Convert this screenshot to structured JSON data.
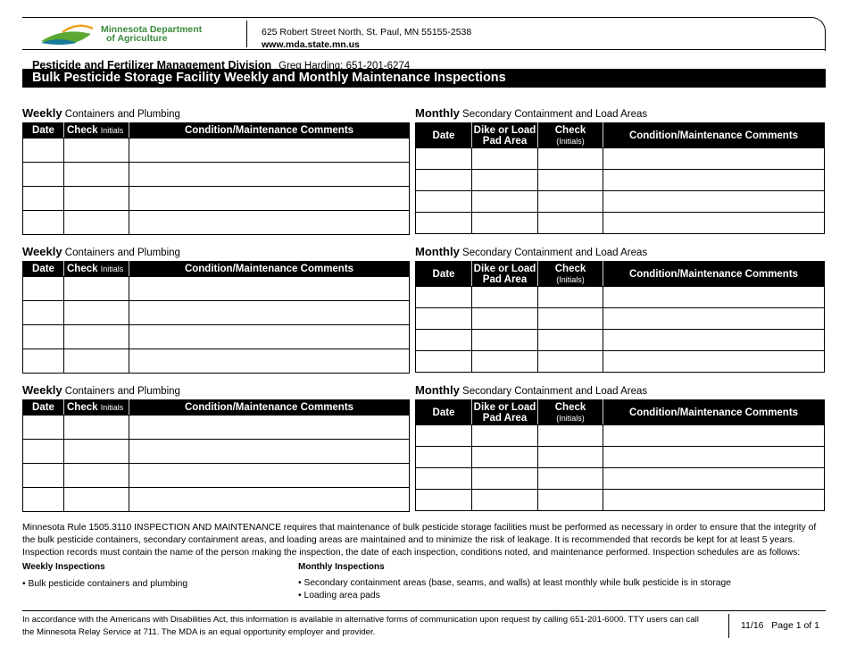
{
  "header": {
    "logo_text": "Minnesota Department of Agriculture",
    "logo_line1": "Minnesota Department",
    "logo_line2": "of Agriculture",
    "address": "625 Robert Street North, St. Paul, MN 55155-2538",
    "website": "www.mda.state.mn.us",
    "division": "Pesticide and Fertilizer Management Division",
    "contact": "Greg Harding: 651-201-6274",
    "title": "Bulk Pesticide Storage Facility Weekly and Monthly Maintenance Inspections"
  },
  "weekly": {
    "heading_bold": "Weekly",
    "heading_rest": "Containers and Plumbing",
    "col_date": "Date",
    "col_check": "Check",
    "col_initials": "Initials",
    "col_comments": "Condition/Maintenance Comments"
  },
  "monthly": {
    "heading_bold": "Monthly",
    "heading_rest": "Secondary Containment and Load Areas",
    "col_date": "Date",
    "col_dike1": "Dike or Load",
    "col_dike2": "Pad Area",
    "col_check": "Check",
    "col_initials": "(Initials)",
    "col_comments": "Condition/Maintenance Comments"
  },
  "rule_text": "Minnesota Rule 1505.3110 INSPECTION AND MAINTENANCE requires that maintenance of bulk pesticide storage facilities must be performed as necessary in order to ensure that the integrity of the bulk pesticide containers, secondary containment areas, and loading areas are maintained and to minimize the risk of leakage. It is recommended that records be kept for at least 5 years. Inspection records must contain the name of the person making the inspection, the date of each inspection, conditions noted, and maintenance performed. Inspection schedules are as follows:",
  "schedules": {
    "weekly_title": "Weekly Inspections",
    "weekly_items": [
      "• Bulk pesticide containers and plumbing"
    ],
    "monthly_title": "Monthly Inspections",
    "monthly_items": [
      "• Secondary containment areas (base, seams, and walls) at least monthly while bulk pesticide is in storage",
      "• Loading area pads"
    ]
  },
  "footer": {
    "ada_text": "In accordance with the Americans with Disabilities Act, this information is available in alternative forms of communication upon request by calling 651-201-6000. TTY users can call the Minnesota Relay Service at 711. The MDA is an equal opportunity employer and provider.",
    "revision": "11/16",
    "page": "Page 1 of 1"
  },
  "colors": {
    "logo_green": "#5aa832",
    "logo_orange": "#f0a020",
    "logo_blue": "#1a7a9a"
  }
}
